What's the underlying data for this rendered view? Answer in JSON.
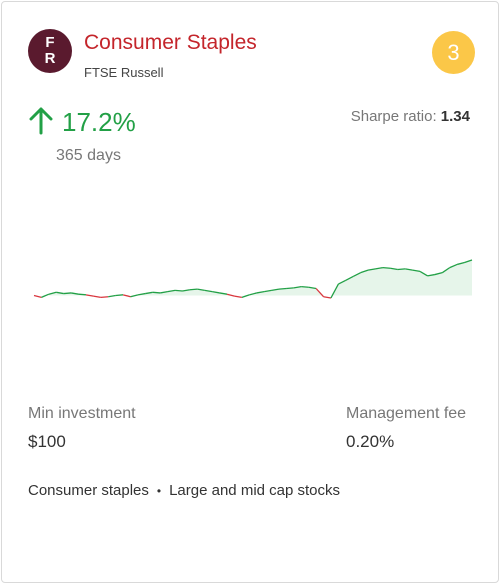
{
  "logo": {
    "line1": "F",
    "line2": "R"
  },
  "title": "Consumer Staples",
  "provider": "FTSE Russell",
  "rank": "3",
  "return": {
    "value": "17.2%",
    "period": "365 days",
    "direction": "up",
    "color": "#22a046"
  },
  "sharpe": {
    "label": "Sharpe ratio:",
    "value": "1.34"
  },
  "min_investment": {
    "label": "Min investment",
    "value": "$100"
  },
  "management_fee": {
    "label": "Management fee",
    "value": "0.20%"
  },
  "tags": [
    "Consumer staples",
    "Large and mid cap stocks"
  ],
  "chart_data": {
    "type": "line",
    "x_points": 60,
    "values": [
      0,
      -0.3,
      0.2,
      0.5,
      0.3,
      0.4,
      0.2,
      0.1,
      -0.1,
      -0.3,
      -0.2,
      0,
      0.1,
      -0.2,
      0.1,
      0.3,
      0.5,
      0.4,
      0.6,
      0.8,
      0.7,
      0.9,
      1.0,
      0.8,
      0.6,
      0.4,
      0.2,
      -0.1,
      -0.3,
      0.1,
      0.4,
      0.6,
      0.8,
      1.0,
      1.1,
      1.2,
      1.4,
      1.3,
      1.1,
      -0.2,
      -0.4,
      1.8,
      2.4,
      3.0,
      3.6,
      4.0,
      4.2,
      4.4,
      4.3,
      4.1,
      4.2,
      4.0,
      3.8,
      3.1,
      3.3,
      3.6,
      4.4,
      4.9,
      5.2,
      5.6
    ],
    "up_color": "#22a046",
    "down_color": "#d9363e",
    "fill_color": "#e6f5ea"
  }
}
